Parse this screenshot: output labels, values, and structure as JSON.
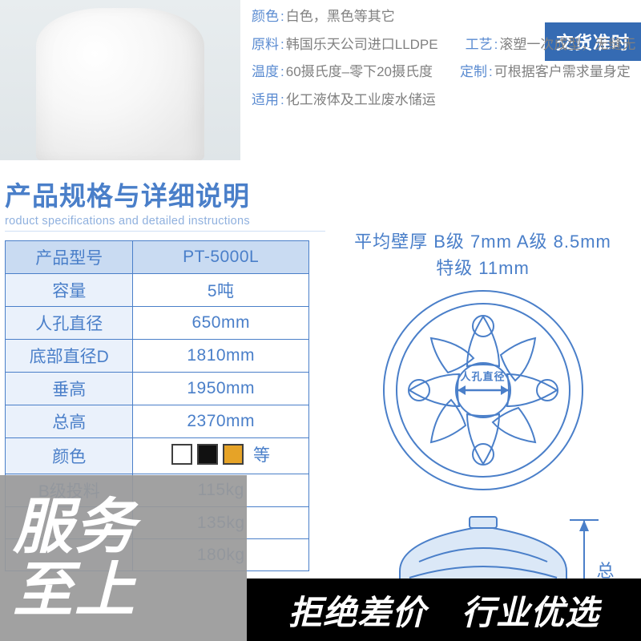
{
  "badge": {
    "text": "交货准时",
    "bg": "#356bb3"
  },
  "attrs": {
    "color_k": "颜色",
    "color_v": "白色，黑色等其它",
    "material_k": "原料",
    "material_v": "韩国乐天公司进口LLDPE",
    "process_k": "工艺",
    "process_v": "滚塑一次成型，无缝无",
    "temp_k": "温度",
    "temp_v": "60摄氏度–零下20摄氏度",
    "custom_k": "定制",
    "custom_v": "可根据客户需求量身定",
    "apply_k": "适用",
    "apply_v": "化工液体及工业废水储运",
    "key_color": "#5a8bd1",
    "val_color": "#808080"
  },
  "section": {
    "cn": "产品规格与详细说明",
    "en": "roduct specifications and detailed instructions",
    "color": "#4a7fc9",
    "sub_color": "#8fb0de"
  },
  "spec_table": {
    "border_color": "#4a7fc9",
    "header_bg": "#c9dbf2",
    "label_bg": "#eaf1fb",
    "value_bg": "#ffffff",
    "text_color": "#4a7fc9",
    "rows": [
      {
        "label": "产品型号",
        "value": "PT-5000L",
        "is_header": true
      },
      {
        "label": "容量",
        "value": "5吨"
      },
      {
        "label": "人孔直径",
        "value": "650mm"
      },
      {
        "label": "底部直径D",
        "value": "1810mm"
      },
      {
        "label": "垂高",
        "value": "1950mm"
      },
      {
        "label": "总高",
        "value": "2370mm"
      },
      {
        "label": "颜色",
        "value": "",
        "swatches": [
          "#ffffff",
          "#111111",
          "#e6a327"
        ],
        "suffix": "等"
      },
      {
        "label": "B级投料",
        "value": "115kg"
      },
      {
        "label": "",
        "value": "135kg"
      },
      {
        "label": "",
        "value": "180kg"
      }
    ]
  },
  "diagram": {
    "thickness_line1": "平均壁厚  B级  7mm   A级  8.5mm",
    "thickness_line2": "特级  11mm",
    "manhole_label": "人孔直径",
    "height_label": "总",
    "stroke": "#4a7fc9",
    "fill": "#d6e4f5"
  },
  "overlay": {
    "left_line1": "服务",
    "left_line2": "至上",
    "left_bg": "rgba(153,153,153,0.92)",
    "right_item1": "拒绝差价",
    "right_item2": "行业优选",
    "right_bg": "#000000",
    "text_color": "#ffffff"
  }
}
